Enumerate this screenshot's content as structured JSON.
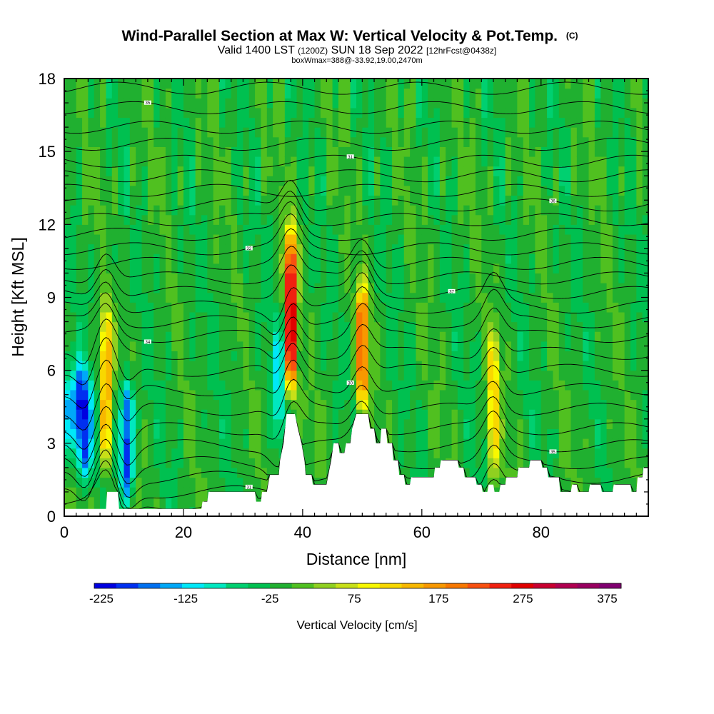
{
  "chart_data": {
    "type": "heatmap",
    "title": "Wind-Parallel Section at Max W: Vertical Velocity & Pot.Temp.",
    "title_suffix": "(C)",
    "subtitle_parts": [
      "Valid 1400 LST",
      "(1200Z)",
      "SUN 18 Sep 2022",
      "[12hrFcst@0438z]"
    ],
    "subsubtitle": "boxWmax=388@-33.92,19.00,2470m",
    "xlabel": "Distance [nm]",
    "ylabel": "Height [Kft MSL]",
    "xlim": [
      0,
      98
    ],
    "ylim": [
      0,
      18
    ],
    "xticks": [
      0,
      20,
      40,
      60,
      80
    ],
    "yticks": [
      0,
      3,
      6,
      9,
      12,
      15,
      18
    ],
    "colorbar": {
      "label": "Vertical Velocity [cm/s]",
      "min": -225,
      "max": 400,
      "step": 25,
      "tick_values": [
        -225,
        -125,
        -25,
        75,
        175,
        275,
        375
      ],
      "tick_labels": [
        "-225",
        "-125",
        "-25",
        "75",
        "175",
        "275",
        "375"
      ],
      "colors": [
        "#0000e0",
        "#0030f0",
        "#0070f0",
        "#00a8f8",
        "#00e8f8",
        "#00e8c0",
        "#00d070",
        "#00c050",
        "#20b030",
        "#50c020",
        "#90d020",
        "#c8e018",
        "#f8f800",
        "#f8d800",
        "#f8b800",
        "#f89800",
        "#f87800",
        "#f85010",
        "#f02010",
        "#e00000",
        "#c80030",
        "#b00050",
        "#980060",
        "#800070"
      ]
    },
    "updrafts": [
      {
        "x": 7,
        "y_bottom": 2,
        "y_top": 8.5,
        "w_max": 175
      },
      {
        "x": 38,
        "y_bottom": 5,
        "y_top": 11.8,
        "w_max": 320
      },
      {
        "x": 50,
        "y_bottom": 4.5,
        "y_top": 9.5,
        "w_max": 230
      },
      {
        "x": 72,
        "y_bottom": 1.5,
        "y_top": 7.5,
        "w_max": 125
      }
    ],
    "downdrafts": [
      {
        "x": 3.5,
        "y_bottom": 1.5,
        "y_top": 6,
        "w_min": -200
      },
      {
        "x": 10.5,
        "y_bottom": 0.7,
        "y_top": 5.5,
        "w_min": -210
      },
      {
        "x": 36,
        "y_bottom": 3,
        "y_top": 8,
        "w_min": -100
      }
    ],
    "terrain": [
      [
        0,
        0.3
      ],
      [
        5,
        0.3
      ],
      [
        7,
        0.3
      ],
      [
        7.2,
        1
      ],
      [
        9,
        1
      ],
      [
        9.2,
        0.3
      ],
      [
        23,
        0.3
      ],
      [
        23.2,
        0.6
      ],
      [
        24,
        0.6
      ],
      [
        24.2,
        1
      ],
      [
        32,
        1
      ],
      [
        32.2,
        0.6
      ],
      [
        33,
        0.6
      ],
      [
        33.2,
        1
      ],
      [
        34,
        1
      ],
      [
        34.2,
        1.3
      ],
      [
        34.5,
        1.7
      ],
      [
        36,
        1.7
      ],
      [
        36.2,
        2.3
      ],
      [
        36.8,
        3
      ],
      [
        37.3,
        4.2
      ],
      [
        38.7,
        4.2
      ],
      [
        39.2,
        3.6
      ],
      [
        39.8,
        3
      ],
      [
        40.3,
        2.3
      ],
      [
        40.5,
        1.7
      ],
      [
        41.5,
        1.7
      ],
      [
        41.7,
        1.3
      ],
      [
        44,
        1.3
      ],
      [
        44.3,
        1.7
      ],
      [
        44.8,
        2.3
      ],
      [
        45.2,
        3
      ],
      [
        46,
        3
      ],
      [
        46.2,
        2.6
      ],
      [
        47,
        2.6
      ],
      [
        47.3,
        3
      ],
      [
        48,
        3
      ],
      [
        48.3,
        3.6
      ],
      [
        49,
        4.2
      ],
      [
        51,
        4.2
      ],
      [
        51.3,
        3.6
      ],
      [
        52,
        3.6
      ],
      [
        52.3,
        3
      ],
      [
        53,
        3
      ],
      [
        53.2,
        3.6
      ],
      [
        54,
        3.6
      ],
      [
        54.2,
        3
      ],
      [
        55,
        3
      ],
      [
        55.2,
        2.3
      ],
      [
        56,
        2.3
      ],
      [
        56.2,
        1.7
      ],
      [
        57,
        1.7
      ],
      [
        57.2,
        1.3
      ],
      [
        58,
        1.3
      ],
      [
        58.2,
        1.6
      ],
      [
        62,
        1.6
      ],
      [
        62.2,
        2
      ],
      [
        63,
        2
      ],
      [
        63.2,
        2.3
      ],
      [
        66,
        2.3
      ],
      [
        66.2,
        2
      ],
      [
        67,
        2
      ],
      [
        67.2,
        1.6
      ],
      [
        69,
        1.6
      ],
      [
        69.2,
        1.3
      ],
      [
        70,
        1.3
      ],
      [
        70.2,
        1
      ],
      [
        71,
        1
      ],
      [
        71.2,
        1.3
      ],
      [
        72,
        1.3
      ],
      [
        72.2,
        1
      ],
      [
        73,
        1
      ],
      [
        73.2,
        1.3
      ],
      [
        74,
        1.3
      ],
      [
        74.2,
        1.6
      ],
      [
        76,
        1.6
      ],
      [
        76.2,
        2
      ],
      [
        78,
        2
      ],
      [
        78.2,
        2.3
      ],
      [
        80,
        2.3
      ],
      [
        80.2,
        2
      ],
      [
        81,
        2
      ],
      [
        81.2,
        1.6
      ],
      [
        83,
        1.6
      ],
      [
        83.2,
        1
      ],
      [
        85,
        1
      ],
      [
        85.2,
        1.3
      ],
      [
        86,
        1.3
      ],
      [
        86.2,
        1
      ],
      [
        88,
        1
      ],
      [
        88.2,
        1.3
      ],
      [
        90,
        1.3
      ],
      [
        90.2,
        1
      ],
      [
        92,
        1
      ],
      [
        92.2,
        1.3
      ],
      [
        95,
        1.3
      ],
      [
        95.2,
        1
      ],
      [
        96,
        1
      ],
      [
        96.2,
        1.6
      ],
      [
        97,
        1.6
      ],
      [
        97.2,
        2
      ],
      [
        98,
        2
      ]
    ],
    "isentrope_base_heights": [
      0.5,
      1,
      1.6,
      2.2,
      2.9,
      3.6,
      4.4,
      5.2,
      6,
      6.7,
      7.4,
      8,
      8.6,
      9.2,
      9.8,
      10.4,
      11,
      11.6,
      12.2,
      12.8,
      13.4,
      14,
      14.6,
      15.3,
      16,
      16.8,
      17.6
    ],
    "isentrope_labels": [
      "30",
      "31",
      "32",
      "34",
      "35",
      "36",
      "37"
    ]
  }
}
